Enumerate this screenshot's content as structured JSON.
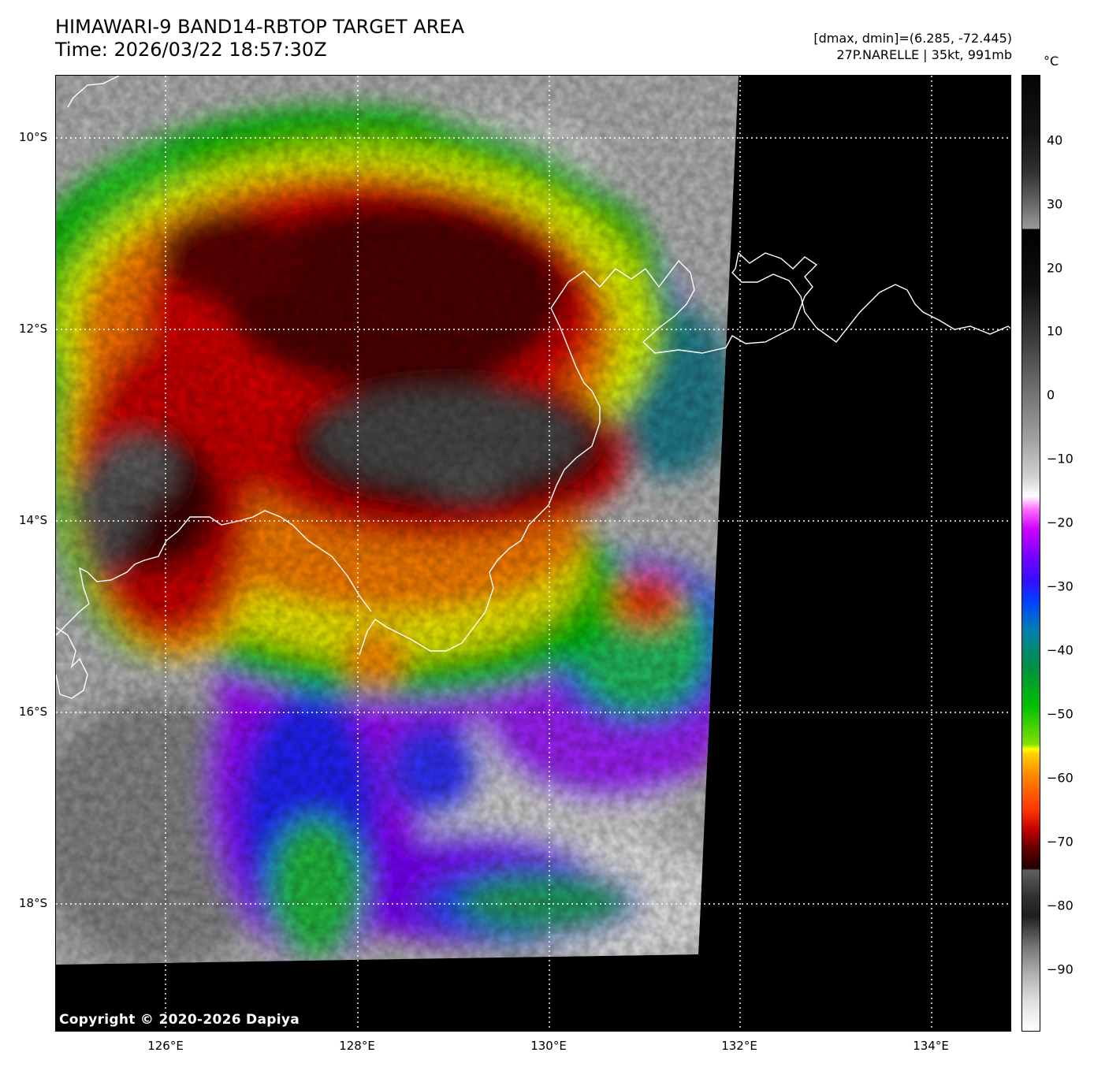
{
  "header": {
    "title_line1": "HIMAWARI-9 BAND14-RBTOP TARGET AREA",
    "title_line2": "Time: 2026/03/22 18:57:30Z",
    "stats_line": "[dmax, dmin]=(6.285, -72.445)",
    "storm_line": "27P.NARELLE | 35kt, 991mb"
  },
  "map": {
    "lat_labels": [
      "10°S",
      "12°S",
      "14°S",
      "16°S",
      "18°S"
    ],
    "lon_labels": [
      "126°E",
      "128°E",
      "130°E",
      "132°E",
      "134°E"
    ],
    "copyright": "Copyright © 2020-2026 Dapiya"
  },
  "colorbar": {
    "unit": "°C",
    "ticks": [
      "40",
      "30",
      "20",
      "10",
      "0",
      "−10",
      "−20",
      "−30",
      "−40",
      "−50",
      "−60",
      "−70",
      "−80",
      "−90"
    ],
    "colors": {
      "warm_gray": "#404040",
      "cold_white": "#ffffff",
      "purple": "#9a00ff",
      "blue": "#1a1aff",
      "green": "#00c000",
      "yellow": "#ffff00",
      "orange": "#ff8000",
      "red": "#e00000",
      "dark_red": "#400000"
    }
  }
}
